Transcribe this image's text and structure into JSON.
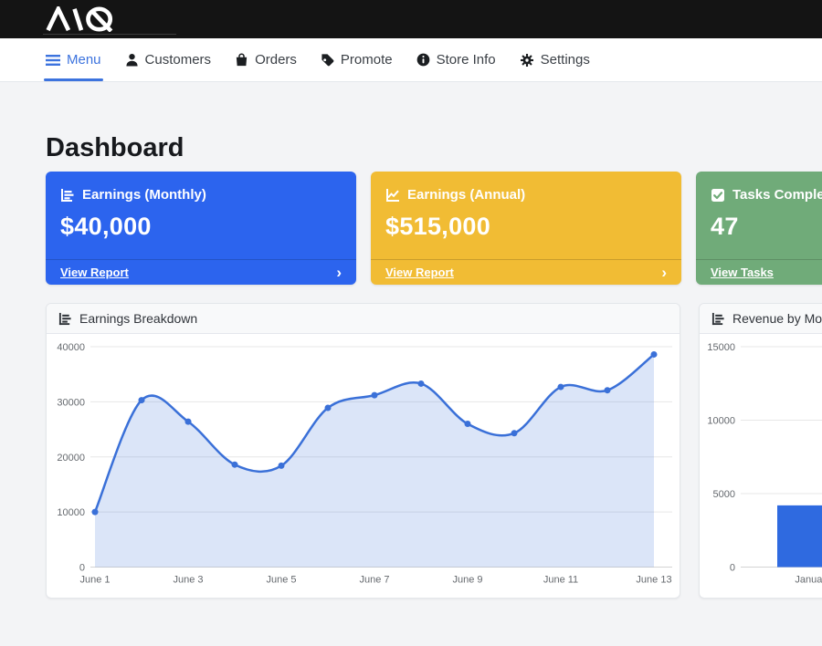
{
  "topbar": {
    "logo_text": "MQ"
  },
  "nav": {
    "items": [
      {
        "label": "Menu",
        "active": true
      },
      {
        "label": "Customers",
        "active": false
      },
      {
        "label": "Orders",
        "active": false
      },
      {
        "label": "Promote",
        "active": false
      },
      {
        "label": "Store Info",
        "active": false
      },
      {
        "label": "Settings",
        "active": false
      }
    ]
  },
  "page": {
    "title": "Dashboard"
  },
  "icons": {
    "chevron_right": "›"
  },
  "colors": {
    "stat_blue": "#2c64ee",
    "stat_yellow": "#f1bc34",
    "stat_green": "#70ab79",
    "nav_active": "#3c73de",
    "line_blue": "#3a70d8",
    "bar_blue": "#2f6ae0"
  },
  "stat_cards": [
    {
      "title": "Earnings (Monthly)",
      "value": "$40,000",
      "link_label": "View Report",
      "color": "#2c64ee"
    },
    {
      "title": "Earnings (Annual)",
      "value": "$515,000",
      "link_label": "View Report",
      "color": "#f1bc34"
    },
    {
      "title": "Tasks Completed",
      "value": "47",
      "link_label": "View Tasks",
      "color": "#70ab79"
    }
  ],
  "chart_data": [
    {
      "type": "area",
      "title": "Earnings Breakdown",
      "x": [
        "June 1",
        "June 2",
        "June 3",
        "June 4",
        "June 5",
        "June 6",
        "June 7",
        "June 8",
        "June 9",
        "June 10",
        "June 11",
        "June 12",
        "June 13"
      ],
      "values": [
        10000,
        30300,
        26400,
        18600,
        18400,
        28900,
        31200,
        33300,
        26000,
        24300,
        32700,
        32100,
        38600
      ],
      "xlabel": "",
      "ylabel": "",
      "ylim": [
        0,
        40000
      ],
      "yticks": [
        0,
        10000,
        20000,
        30000,
        40000
      ],
      "xticks_shown": [
        "June 1",
        "June 3",
        "June 5",
        "June 7",
        "June 9",
        "June 11",
        "June 13"
      ],
      "grid": true,
      "legend": "none",
      "line_color": "#3a70d8",
      "fill_color": "rgba(58,112,216,0.18)"
    },
    {
      "type": "bar",
      "title": "Revenue by Month",
      "categories": [
        "January"
      ],
      "values": [
        4200
      ],
      "xlabel": "",
      "ylabel": "",
      "ylim": [
        0,
        15000
      ],
      "yticks": [
        0,
        5000,
        10000,
        15000
      ],
      "grid": true,
      "legend": "none",
      "bar_color": "#2f6ae0"
    }
  ]
}
